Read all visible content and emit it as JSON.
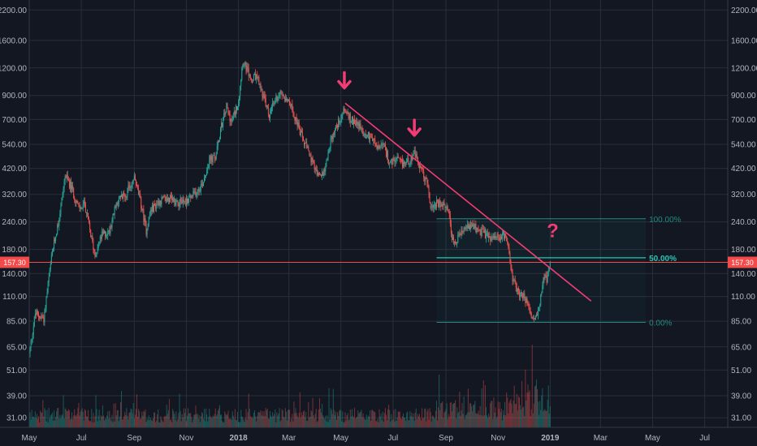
{
  "chart_data": {
    "type": "candlestick",
    "y_scale": "log",
    "ylim": [
      29,
      2400
    ],
    "y_ticks": [
      "2200.00",
      "1600.00",
      "1200.00",
      "900.00",
      "700.00",
      "540.00",
      "420.00",
      "320.00",
      "240.00",
      "180.00",
      "140.00",
      "110.00",
      "85.00",
      "65.00",
      "51.00",
      "39.00",
      "31.00"
    ],
    "x_range": [
      "2017-05-01",
      "2019-07-28"
    ],
    "x_ticks": [
      {
        "label": "May",
        "date": "2017-05-01",
        "bold": false
      },
      {
        "label": "Jul",
        "date": "2017-07-01",
        "bold": false
      },
      {
        "label": "Sep",
        "date": "2017-09-01",
        "bold": false
      },
      {
        "label": "Nov",
        "date": "2017-11-01",
        "bold": false
      },
      {
        "label": "2018",
        "date": "2018-01-01",
        "bold": true
      },
      {
        "label": "Mar",
        "date": "2018-03-01",
        "bold": false
      },
      {
        "label": "May",
        "date": "2018-05-01",
        "bold": false
      },
      {
        "label": "Jul",
        "date": "2018-07-01",
        "bold": false
      },
      {
        "label": "Sep",
        "date": "2018-09-01",
        "bold": false
      },
      {
        "label": "Nov",
        "date": "2018-11-01",
        "bold": false
      },
      {
        "label": "2019",
        "date": "2019-01-01",
        "bold": true
      },
      {
        "label": "Mar",
        "date": "2019-03-01",
        "bold": false
      },
      {
        "label": "May",
        "date": "2019-05-01",
        "bold": false
      },
      {
        "label": "Jul",
        "date": "2019-07-01",
        "bold": false
      }
    ],
    "price_path": [
      [
        "2017-05-01",
        60
      ],
      [
        "2017-05-08",
        92
      ],
      [
        "2017-05-18",
        88
      ],
      [
        "2017-05-28",
        175
      ],
      [
        "2017-06-05",
        250
      ],
      [
        "2017-06-12",
        390
      ],
      [
        "2017-06-20",
        340
      ],
      [
        "2017-06-28",
        275
      ],
      [
        "2017-07-05",
        290
      ],
      [
        "2017-07-12",
        210
      ],
      [
        "2017-07-17",
        170
      ],
      [
        "2017-07-25",
        210
      ],
      [
        "2017-08-02",
        215
      ],
      [
        "2017-08-12",
        300
      ],
      [
        "2017-08-22",
        320
      ],
      [
        "2017-09-01",
        380
      ],
      [
        "2017-09-08",
        300
      ],
      [
        "2017-09-15",
        220
      ],
      [
        "2017-09-20",
        270
      ],
      [
        "2017-10-01",
        300
      ],
      [
        "2017-10-12",
        305
      ],
      [
        "2017-10-22",
        295
      ],
      [
        "2017-11-01",
        300
      ],
      [
        "2017-11-10",
        320
      ],
      [
        "2017-11-20",
        360
      ],
      [
        "2017-11-28",
        460
      ],
      [
        "2017-12-05",
        470
      ],
      [
        "2017-12-12",
        650
      ],
      [
        "2017-12-18",
        800
      ],
      [
        "2017-12-24",
        680
      ],
      [
        "2018-01-01",
        850
      ],
      [
        "2018-01-06",
        1300
      ],
      [
        "2018-01-10",
        1200
      ],
      [
        "2018-01-16",
        1050
      ],
      [
        "2018-01-22",
        1100
      ],
      [
        "2018-02-01",
        850
      ],
      [
        "2018-02-06",
        720
      ],
      [
        "2018-02-12",
        850
      ],
      [
        "2018-02-20",
        930
      ],
      [
        "2018-03-01",
        860
      ],
      [
        "2018-03-08",
        720
      ],
      [
        "2018-03-15",
        600
      ],
      [
        "2018-03-22",
        520
      ],
      [
        "2018-04-01",
        410
      ],
      [
        "2018-04-06",
        380
      ],
      [
        "2018-04-12",
        420
      ],
      [
        "2018-04-20",
        580
      ],
      [
        "2018-04-28",
        680
      ],
      [
        "2018-05-05",
        780
      ],
      [
        "2018-05-12",
        700
      ],
      [
        "2018-05-20",
        680
      ],
      [
        "2018-05-28",
        600
      ],
      [
        "2018-06-05",
        590
      ],
      [
        "2018-06-12",
        520
      ],
      [
        "2018-06-20",
        530
      ],
      [
        "2018-06-28",
        440
      ],
      [
        "2018-07-05",
        460
      ],
      [
        "2018-07-12",
        440
      ],
      [
        "2018-07-20",
        460
      ],
      [
        "2018-07-26",
        490
      ],
      [
        "2018-08-02",
        420
      ],
      [
        "2018-08-10",
        360
      ],
      [
        "2018-08-14",
        280
      ],
      [
        "2018-08-20",
        290
      ],
      [
        "2018-08-28",
        285
      ],
      [
        "2018-09-05",
        270
      ],
      [
        "2018-09-08",
        200
      ],
      [
        "2018-09-12",
        190
      ],
      [
        "2018-09-18",
        210
      ],
      [
        "2018-09-25",
        225
      ],
      [
        "2018-10-01",
        230
      ],
      [
        "2018-10-10",
        220
      ],
      [
        "2018-10-20",
        205
      ],
      [
        "2018-10-30",
        200
      ],
      [
        "2018-11-08",
        210
      ],
      [
        "2018-11-14",
        180
      ],
      [
        "2018-11-18",
        130
      ],
      [
        "2018-11-25",
        115
      ],
      [
        "2018-12-02",
        110
      ],
      [
        "2018-12-08",
        92
      ],
      [
        "2018-12-14",
        85
      ],
      [
        "2018-12-20",
        100
      ],
      [
        "2018-12-24",
        140
      ],
      [
        "2018-12-28",
        130
      ],
      [
        "2019-01-01",
        157.3
      ]
    ],
    "volume_end": "2019-01-01",
    "current_price": {
      "label": "157.30",
      "value": 157.3
    },
    "trendline": {
      "start": {
        "date": "2018-05-06",
        "value": 830
      },
      "end": {
        "date": "2019-02-18",
        "value": 105
      },
      "color": "#f23d74"
    },
    "annotations": [
      {
        "type": "arrow",
        "date": "2018-05-05",
        "value": 1050,
        "color": "#f23d74"
      },
      {
        "type": "arrow",
        "date": "2018-07-26",
        "value": 640,
        "color": "#f23d74"
      },
      {
        "type": "text",
        "text": "?",
        "date": "2019-01-04",
        "value": 205,
        "color": "#f23d74"
      }
    ],
    "fibonacci": {
      "start": "2018-08-21",
      "end": "2019-04-23",
      "levels": [
        {
          "label": "100.00%",
          "value": 248
        },
        {
          "label": "50.00%",
          "value": 165
        },
        {
          "label": "0.00%",
          "value": 84
        }
      ]
    },
    "colors": {
      "background": "#131722",
      "grid": "#2a2e39",
      "up": "#26a69a",
      "down": "#ef5350",
      "up_volume": "#26a69a",
      "down_volume": "#ef5350",
      "current_line": "#f44a4a",
      "fib_100": "#1f8b82",
      "fib_50": "#26c6b4",
      "fib_0": "#1f8b82",
      "axis_text": "#b2b5be"
    }
  }
}
